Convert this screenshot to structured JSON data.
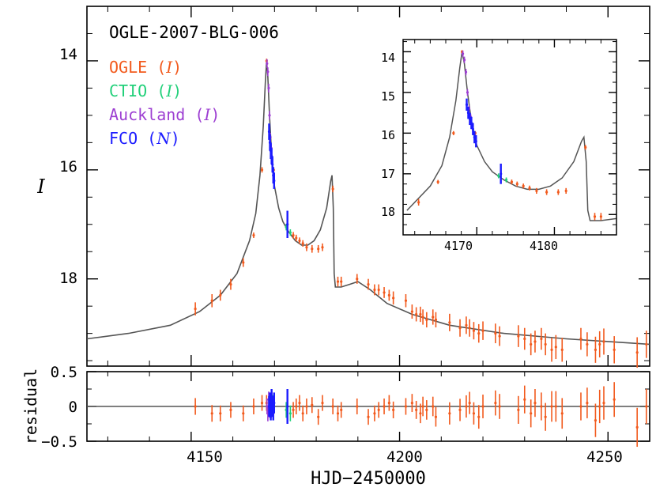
{
  "title": "OGLE-2007-BLG-006",
  "legend": [
    {
      "name": "OGLE",
      "band": "I",
      "color": "#f25a1d"
    },
    {
      "name": "CTIO",
      "band": "I",
      "color": "#22d07a"
    },
    {
      "name": "Auckland",
      "band": "I",
      "color": "#9d3fd2"
    },
    {
      "name": "FCO",
      "band": "N",
      "color": "#1b1bff"
    }
  ],
  "main_ylabel": "I",
  "residual_ylabel": "residual",
  "xlabel": "HJD−2450000",
  "main_xticks": [
    "4150",
    "4200",
    "4250"
  ],
  "main_yticks": [
    "14",
    "16",
    "18"
  ],
  "resid_yticks": [
    "0.5",
    "0",
    "−0.5"
  ],
  "inset_xticks": [
    "4170",
    "4180"
  ],
  "inset_yticks": [
    "14",
    "15",
    "16",
    "17",
    "18"
  ],
  "colors": {
    "model": "#555555",
    "axis": "#000000",
    "ogle": "#f25a1d",
    "ctio": "#22d07a",
    "auckland": "#9d3fd2",
    "fco": "#1b1bff"
  },
  "chart_data": [
    {
      "type": "scatter",
      "panel": "main",
      "xlim": [
        4125,
        4260
      ],
      "ylim": [
        19.6,
        13.0
      ],
      "ylim_note": "magnitude axis, inverted (bright at top)",
      "model_curve": {
        "x": [
          4125,
          4135,
          4145,
          4152,
          4157,
          4161,
          4164,
          4165.5,
          4166.5,
          4167.3,
          4167.8,
          4168.1,
          4168.4,
          4168.8,
          4169.3,
          4170,
          4171,
          4172,
          4173.5,
          4175,
          4176.5,
          4178,
          4179.5,
          4181,
          4182.5,
          4183.5,
          4183.8,
          4184.1,
          4184.3,
          4184.6,
          4186,
          4188,
          4190,
          4193,
          4197,
          4203,
          4212,
          4225,
          4240,
          4260
        ],
        "y": [
          19.1,
          19.0,
          18.85,
          18.6,
          18.3,
          17.9,
          17.3,
          16.8,
          16.1,
          15.2,
          14.4,
          14.0,
          14.3,
          15.0,
          15.7,
          16.3,
          16.7,
          16.95,
          17.15,
          17.3,
          17.38,
          17.38,
          17.3,
          17.1,
          16.7,
          16.2,
          16.1,
          16.7,
          17.9,
          18.15,
          18.15,
          18.1,
          18.05,
          18.2,
          18.45,
          18.65,
          18.85,
          19.0,
          19.1,
          19.2
        ]
      },
      "series": [
        {
          "name": "OGLE (I)",
          "color": "#f25a1d",
          "x": [
            4151,
            4155,
            4157,
            4159.5,
            4162.5,
            4165,
            4167,
            4168.1,
            4169.8,
            4174.5,
            4175.2,
            4176,
            4176.8,
            4177.7,
            4179,
            4180.5,
            4181.5,
            4184,
            4185.2,
            4186,
            4189.8,
            4192.5,
            4194,
            4195,
            4196.3,
            4197.5,
            4198.5,
            4201.5,
            4203,
            4204,
            4205,
            4205.6,
            4206.5,
            4208,
            4208.7,
            4212,
            4214.5,
            4216,
            4216.8,
            4217.8,
            4219,
            4220,
            4223,
            4224,
            4228.5,
            4230,
            4231.5,
            4232.5,
            4234,
            4235,
            4236.5,
            4237.5,
            4239,
            4243.5,
            4245,
            4247,
            4248,
            4249,
            4251.5,
            4257,
            4259.2
          ],
          "y": [
            18.55,
            18.4,
            18.3,
            18.1,
            17.7,
            17.2,
            16.0,
            14.0,
            16.0,
            17.2,
            17.25,
            17.3,
            17.35,
            17.42,
            17.45,
            17.45,
            17.42,
            16.35,
            18.05,
            18.05,
            18.0,
            18.1,
            18.2,
            18.2,
            18.25,
            18.3,
            18.35,
            18.4,
            18.6,
            18.65,
            18.65,
            18.7,
            18.75,
            18.7,
            18.75,
            18.8,
            18.9,
            18.85,
            18.9,
            18.95,
            19.0,
            18.95,
            19.0,
            19.05,
            19.05,
            19.1,
            19.2,
            19.15,
            19.1,
            19.2,
            19.3,
            19.25,
            19.3,
            19.1,
            19.2,
            19.3,
            19.2,
            19.15,
            19.3,
            19.35,
            19.2
          ],
          "resid": [
            0.0,
            -0.1,
            -0.1,
            -0.05,
            -0.1,
            0.0,
            0.05,
            0.05,
            0.0,
            -0.05,
            0.0,
            0.05,
            -0.1,
            0.0,
            0.02,
            -0.15,
            0.05,
            0.0,
            -0.1,
            -0.05,
            0.0,
            -0.15,
            -0.1,
            -0.05,
            0.0,
            0.05,
            -0.05,
            0.0,
            0.05,
            -0.05,
            -0.1,
            0.0,
            -0.05,
            0.0,
            -0.15,
            -0.1,
            -0.05,
            0.0,
            0.05,
            -0.1,
            -0.15,
            0.0,
            0.05,
            0.0,
            -0.05,
            0.1,
            -0.1,
            0.05,
            0.0,
            -0.15,
            0.0,
            0.0,
            -0.1,
            0.0,
            0.05,
            -0.2,
            0.0,
            0.05,
            0.1,
            -0.3,
            0.0
          ],
          "err": [
            0.12,
            0.12,
            0.1,
            0.1,
            0.08,
            0.05,
            0.05,
            0.04,
            0.05,
            0.06,
            0.06,
            0.06,
            0.06,
            0.07,
            0.07,
            0.07,
            0.07,
            0.06,
            0.09,
            0.09,
            0.09,
            0.1,
            0.1,
            0.1,
            0.1,
            0.1,
            0.12,
            0.12,
            0.13,
            0.13,
            0.14,
            0.14,
            0.14,
            0.14,
            0.14,
            0.16,
            0.16,
            0.16,
            0.16,
            0.16,
            0.17,
            0.17,
            0.18,
            0.18,
            0.2,
            0.2,
            0.2,
            0.2,
            0.2,
            0.2,
            0.22,
            0.22,
            0.22,
            0.2,
            0.22,
            0.24,
            0.24,
            0.24,
            0.25,
            0.28,
            0.25
          ]
        },
        {
          "name": "CTIO (I)",
          "color": "#22d07a",
          "x": [
            4169.4,
            4169.6,
            4172.8,
            4173.8
          ],
          "y": [
            15.8,
            16.0,
            17.05,
            17.15
          ],
          "resid": [
            0.0,
            0.05,
            -0.05,
            -0.1
          ],
          "err": [
            0.06,
            0.06,
            0.06,
            0.06
          ]
        },
        {
          "name": "Auckland (I)",
          "color": "#9d3fd2",
          "x": [
            4168.2,
            4168.4,
            4168.6,
            4168.8,
            4169.0,
            4169.2
          ],
          "y": [
            14.05,
            14.2,
            14.5,
            15.0,
            15.4,
            15.6
          ],
          "resid": [
            0.0,
            -0.1,
            0.1,
            -0.05,
            0.05,
            -0.05
          ],
          "err": [
            0.08,
            0.08,
            0.08,
            0.08,
            0.08,
            0.08
          ]
        },
        {
          "name": "FCO (N)",
          "color": "#1b1bff",
          "x": [
            4168.7,
            4168.9,
            4169.1,
            4169.3,
            4169.5,
            4169.7,
            4169.9,
            4173.1
          ],
          "y": [
            15.3,
            15.5,
            15.65,
            15.75,
            15.9,
            16.1,
            16.2,
            17.0
          ],
          "resid": [
            0.0,
            0.05,
            -0.05,
            0.1,
            0.0,
            -0.05,
            0.05,
            0.0
          ],
          "err": [
            0.15,
            0.15,
            0.15,
            0.15,
            0.15,
            0.15,
            0.15,
            0.25
          ]
        }
      ]
    },
    {
      "type": "scatter",
      "panel": "residual",
      "ylim": [
        -0.5,
        0.5
      ],
      "zero_line": 0
    },
    {
      "type": "scatter",
      "panel": "inset",
      "xlim": [
        4160.5,
        4188
      ],
      "ylim": [
        18.5,
        13.7
      ],
      "xticks": [
        4170,
        4180
      ],
      "yticks": [
        14,
        15,
        16,
        17,
        18
      ]
    }
  ]
}
